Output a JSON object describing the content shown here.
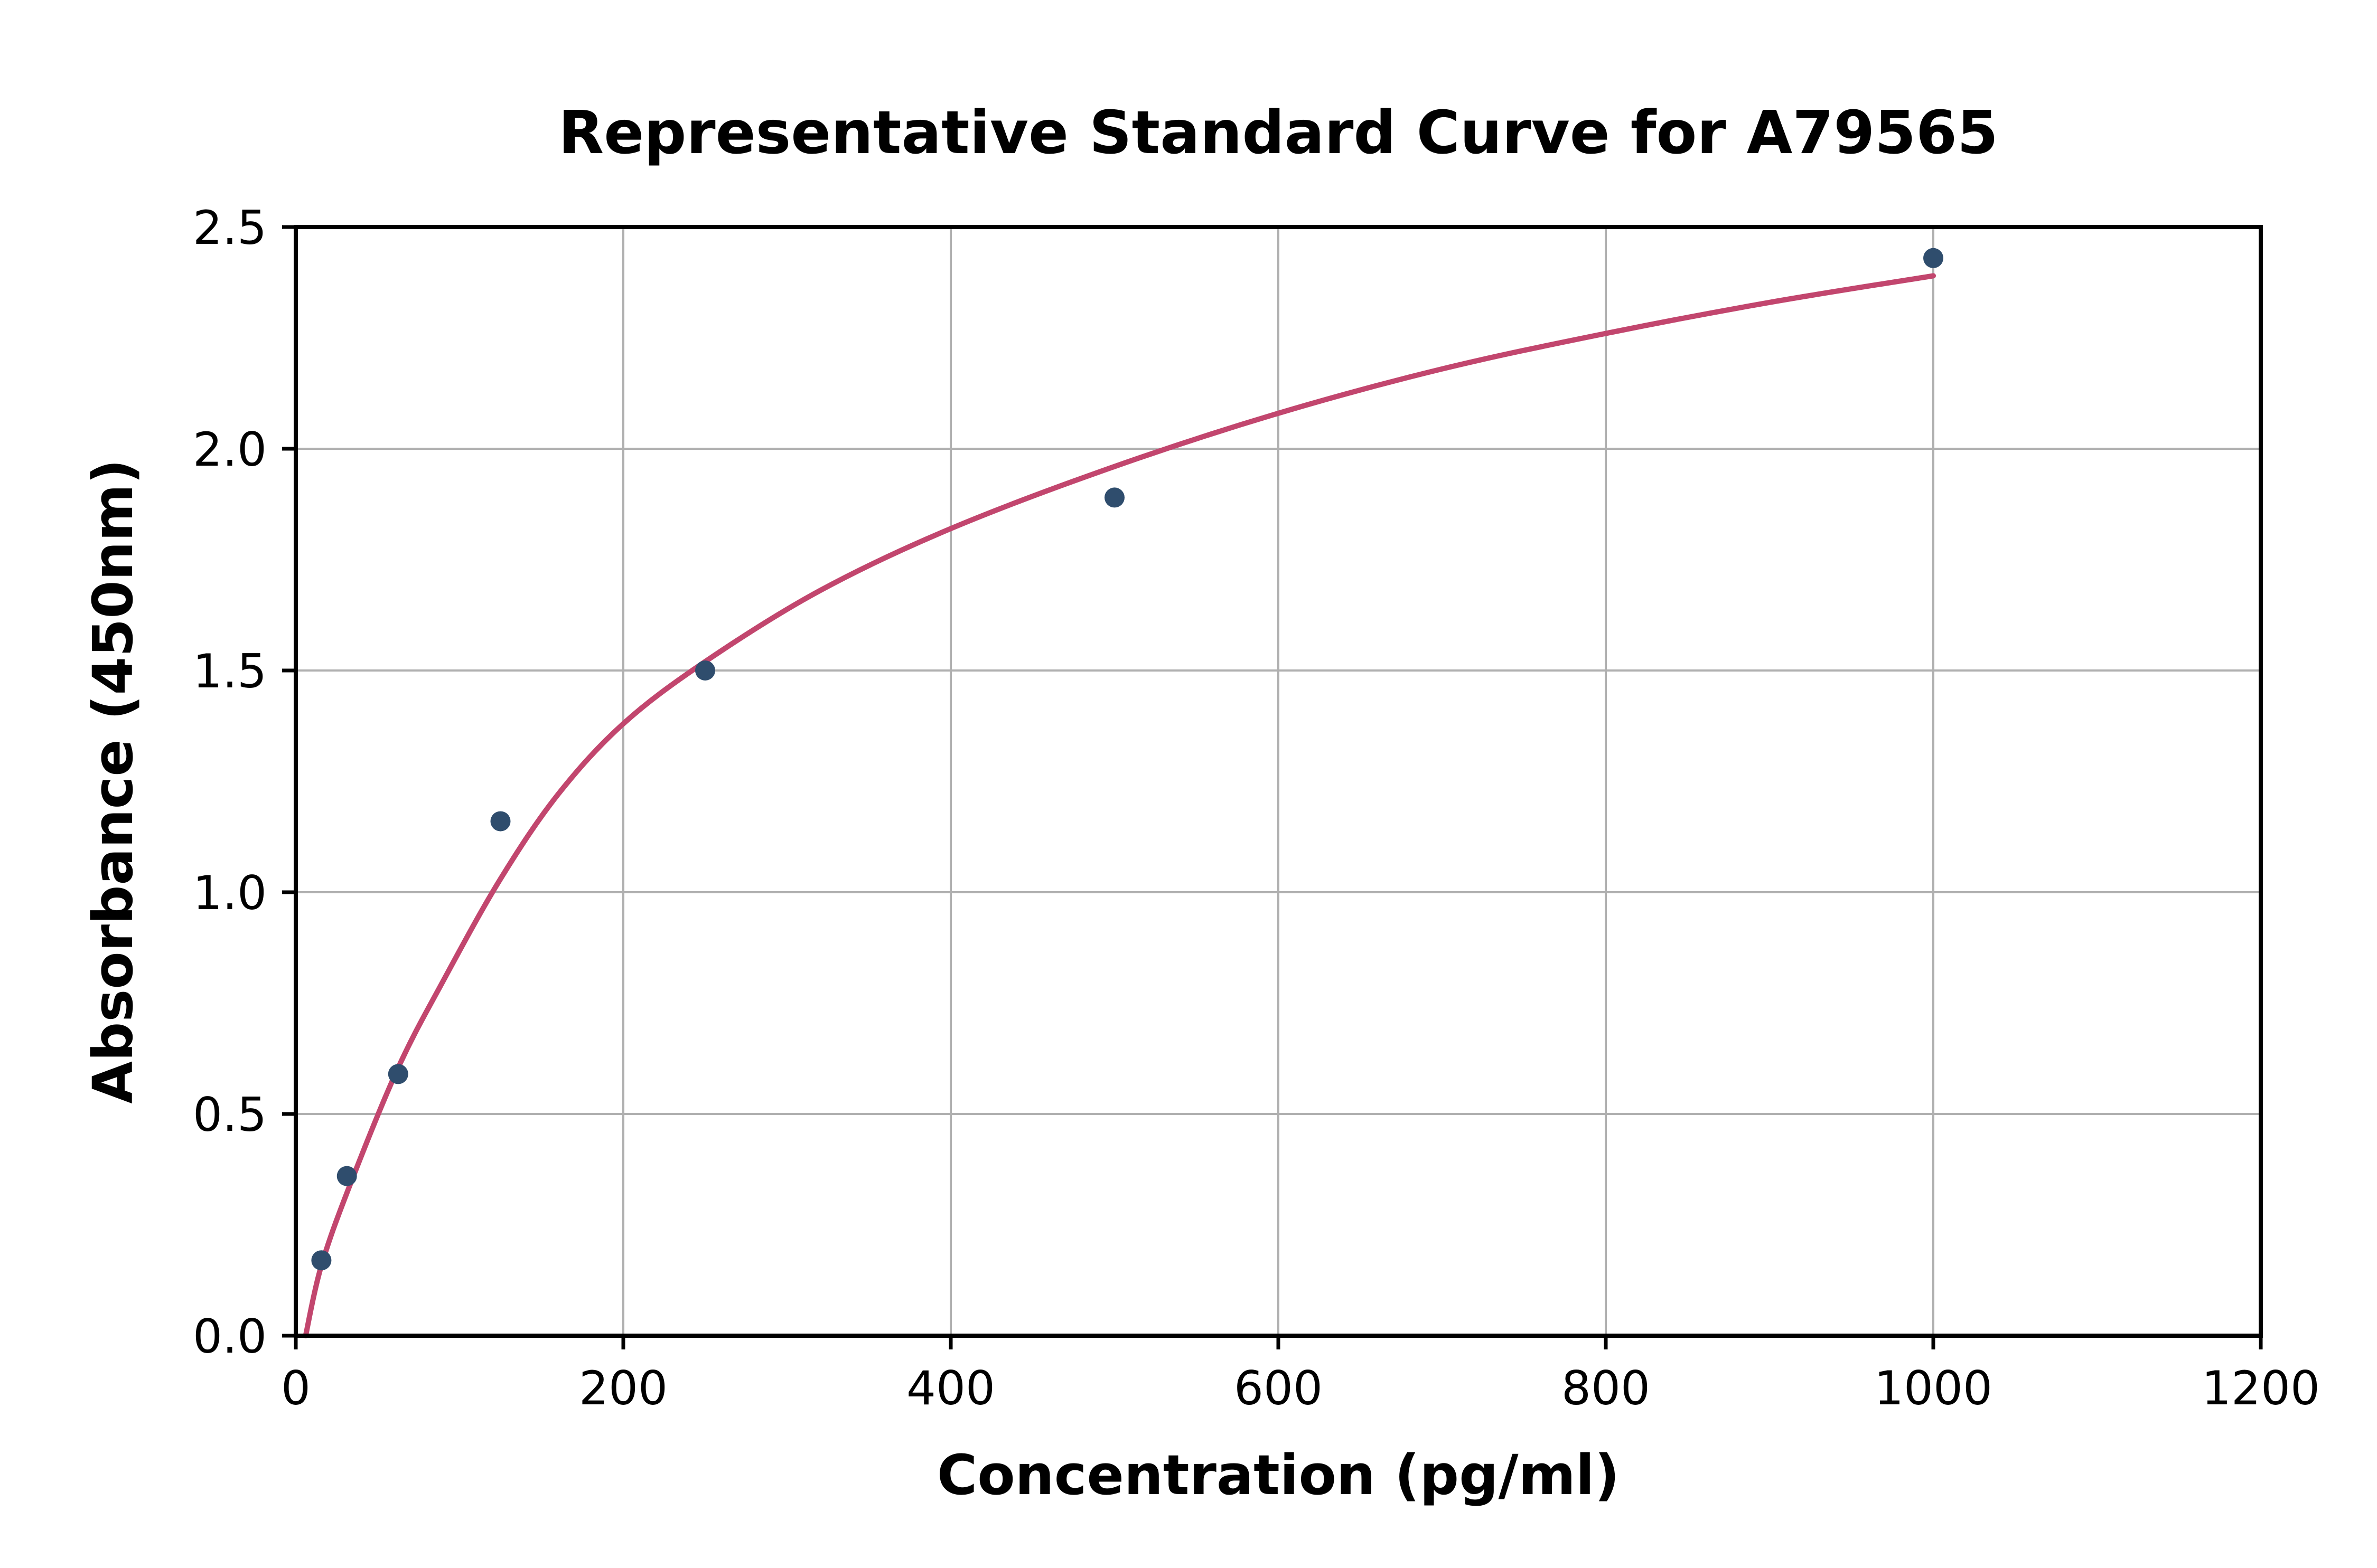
{
  "figure": {
    "background": "#ffffff"
  },
  "chart_data": {
    "type": "scatter",
    "title": "Representative Standard Curve for A79565",
    "xlabel": "Concentration (pg/ml)",
    "ylabel": "Absorbance (450nm)",
    "xlim": [
      0,
      1200
    ],
    "ylim": [
      0,
      2.5
    ],
    "grid": true,
    "grid_color": "#b0b0b0",
    "axis_color": "#000000",
    "legend": "none",
    "x_ticks": {
      "values": [
        0,
        200,
        400,
        600,
        800,
        1000,
        1200
      ],
      "labels": [
        "0",
        "200",
        "400",
        "600",
        "800",
        "1000",
        "1200"
      ]
    },
    "y_ticks": {
      "values": [
        0,
        0.5,
        1,
        1.5,
        2,
        2.5
      ],
      "labels": [
        "0.0",
        "0.5",
        "1.0",
        "1.5",
        "2.0",
        "2.5"
      ]
    },
    "series": [
      {
        "name": "standard-points",
        "type": "scatter",
        "marker": "circle",
        "color": "#2f4d6d",
        "points": [
          [
            15.6,
            0.17
          ],
          [
            31.2,
            0.36
          ],
          [
            62.5,
            0.59
          ],
          [
            125,
            1.16
          ],
          [
            250,
            1.5
          ],
          [
            500,
            1.89
          ],
          [
            1000,
            2.43
          ]
        ]
      },
      {
        "name": "fit-curve",
        "type": "line",
        "color": "#c2466e",
        "points": [
          [
            6,
            0.0
          ],
          [
            15,
            0.15
          ],
          [
            31,
            0.32
          ],
          [
            62,
            0.6
          ],
          [
            90,
            0.8
          ],
          [
            125,
            1.03
          ],
          [
            160,
            1.22
          ],
          [
            200,
            1.38
          ],
          [
            250,
            1.52
          ],
          [
            320,
            1.68
          ],
          [
            400,
            1.82
          ],
          [
            500,
            1.96
          ],
          [
            600,
            2.08
          ],
          [
            700,
            2.18
          ],
          [
            800,
            2.26
          ],
          [
            900,
            2.33
          ],
          [
            1000,
            2.39
          ]
        ]
      }
    ]
  }
}
